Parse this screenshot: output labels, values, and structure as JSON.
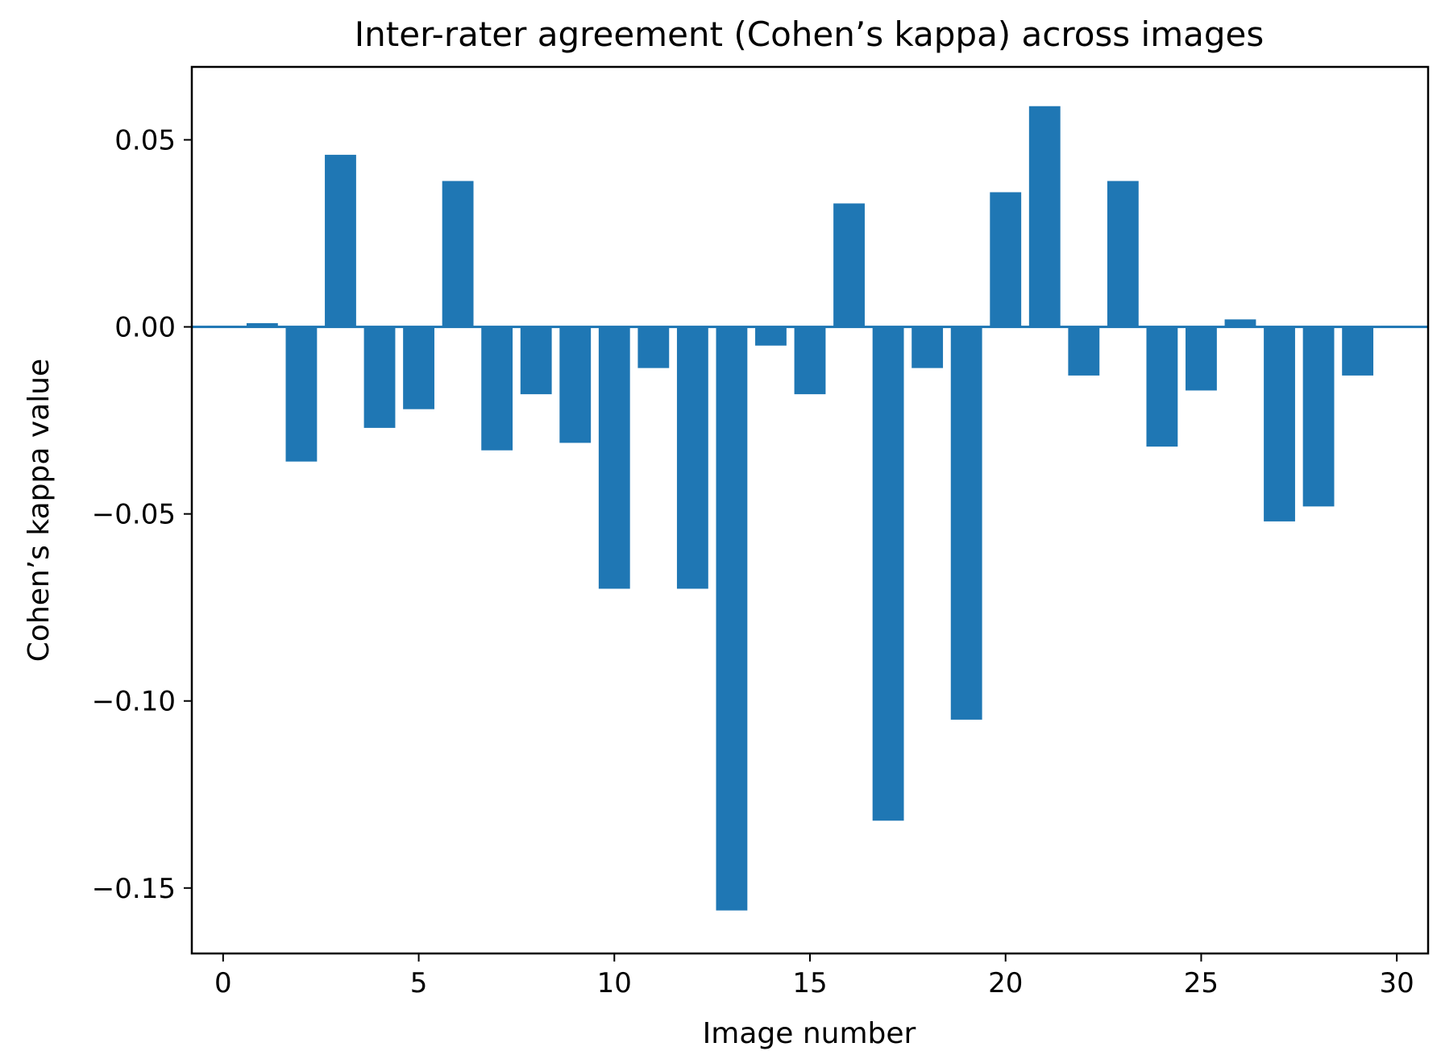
{
  "chart_data": {
    "type": "bar",
    "title": "Inter-rater agreement (Cohen’s kappa) across images",
    "xlabel": "Image number",
    "ylabel": "Cohen’s kappa value",
    "x": [
      0,
      1,
      2,
      3,
      4,
      5,
      6,
      7,
      8,
      9,
      10,
      11,
      12,
      13,
      14,
      15,
      16,
      17,
      18,
      19,
      20,
      21,
      22,
      23,
      24,
      25,
      26,
      27,
      28,
      29,
      30
    ],
    "values": [
      0.0,
      0.001,
      -0.036,
      0.046,
      -0.027,
      -0.022,
      0.039,
      -0.033,
      -0.018,
      -0.031,
      -0.07,
      -0.011,
      -0.07,
      -0.156,
      -0.005,
      -0.018,
      0.033,
      -0.132,
      -0.011,
      -0.105,
      0.036,
      0.059,
      -0.013,
      0.039,
      -0.032,
      -0.017,
      0.002,
      -0.052,
      -0.048,
      -0.013,
      0.0
    ],
    "xlim": [
      -0.8,
      30.8
    ],
    "ylim": [
      -0.1675,
      0.0695
    ],
    "xticks": [
      0,
      5,
      10,
      15,
      20,
      25,
      30
    ],
    "xtick_labels": [
      "0",
      "5",
      "10",
      "15",
      "20",
      "25",
      "30"
    ],
    "yticks": [
      0.05,
      0.0,
      -0.05,
      -0.1,
      -0.15
    ],
    "ytick_labels": [
      "0.05",
      "0.00",
      "−0.05",
      "−0.10",
      "−0.15"
    ],
    "bar_color": "#1f77b4",
    "grid": false,
    "legend": "none"
  }
}
